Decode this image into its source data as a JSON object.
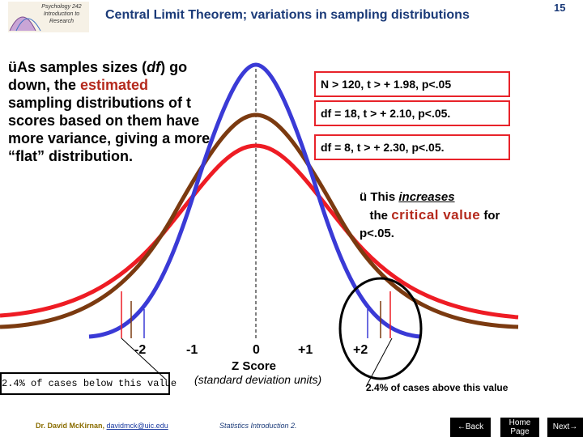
{
  "logo": {
    "text": "Psychology 242 Introduction to Research"
  },
  "title": "Central Limit Theorem; variations in sampling distributions",
  "page_number": "15",
  "main_text": {
    "check": "ü",
    "part1": "As samples sizes (",
    "df": "df",
    "part2": ") go down, the ",
    "estimated": "estimated",
    "part3": " sampling distributions of t scores based on them have more variance, giving a more “flat” distribution."
  },
  "boxes": [
    "N > 120, t > + 1.98, p<.05",
    "df = 18, t > + 2.10, p<.05.",
    "df = 8, t > + 2.30, p<.05."
  ],
  "note": {
    "check": "ü",
    "this": "This ",
    "increases": "increases",
    "the": "the ",
    "critical_value": "critical value",
    "for": " for p<.05."
  },
  "z_labels": [
    "-2",
    "-1",
    "0",
    "+1",
    "+2"
  ],
  "axis_title": "Z Score",
  "axis_subtitle": "(standard deviation units)",
  "below_text": "2.4% of cases below this value",
  "above_text": "2.4% of cases above this value",
  "footer": {
    "author": "Dr. David McKirnan, ",
    "email": "davidmck@uic.edu",
    "center": "Statistics Introduction 2."
  },
  "nav": {
    "back": "Back",
    "home": "Home Page",
    "next": "Next"
  },
  "colors": {
    "normal_curve": "#3a3ad6",
    "df18_curve": "#7b3a10",
    "df8_curve": "#ee1c24",
    "box_border": "#e8232a",
    "title": "#1a3a78"
  }
}
